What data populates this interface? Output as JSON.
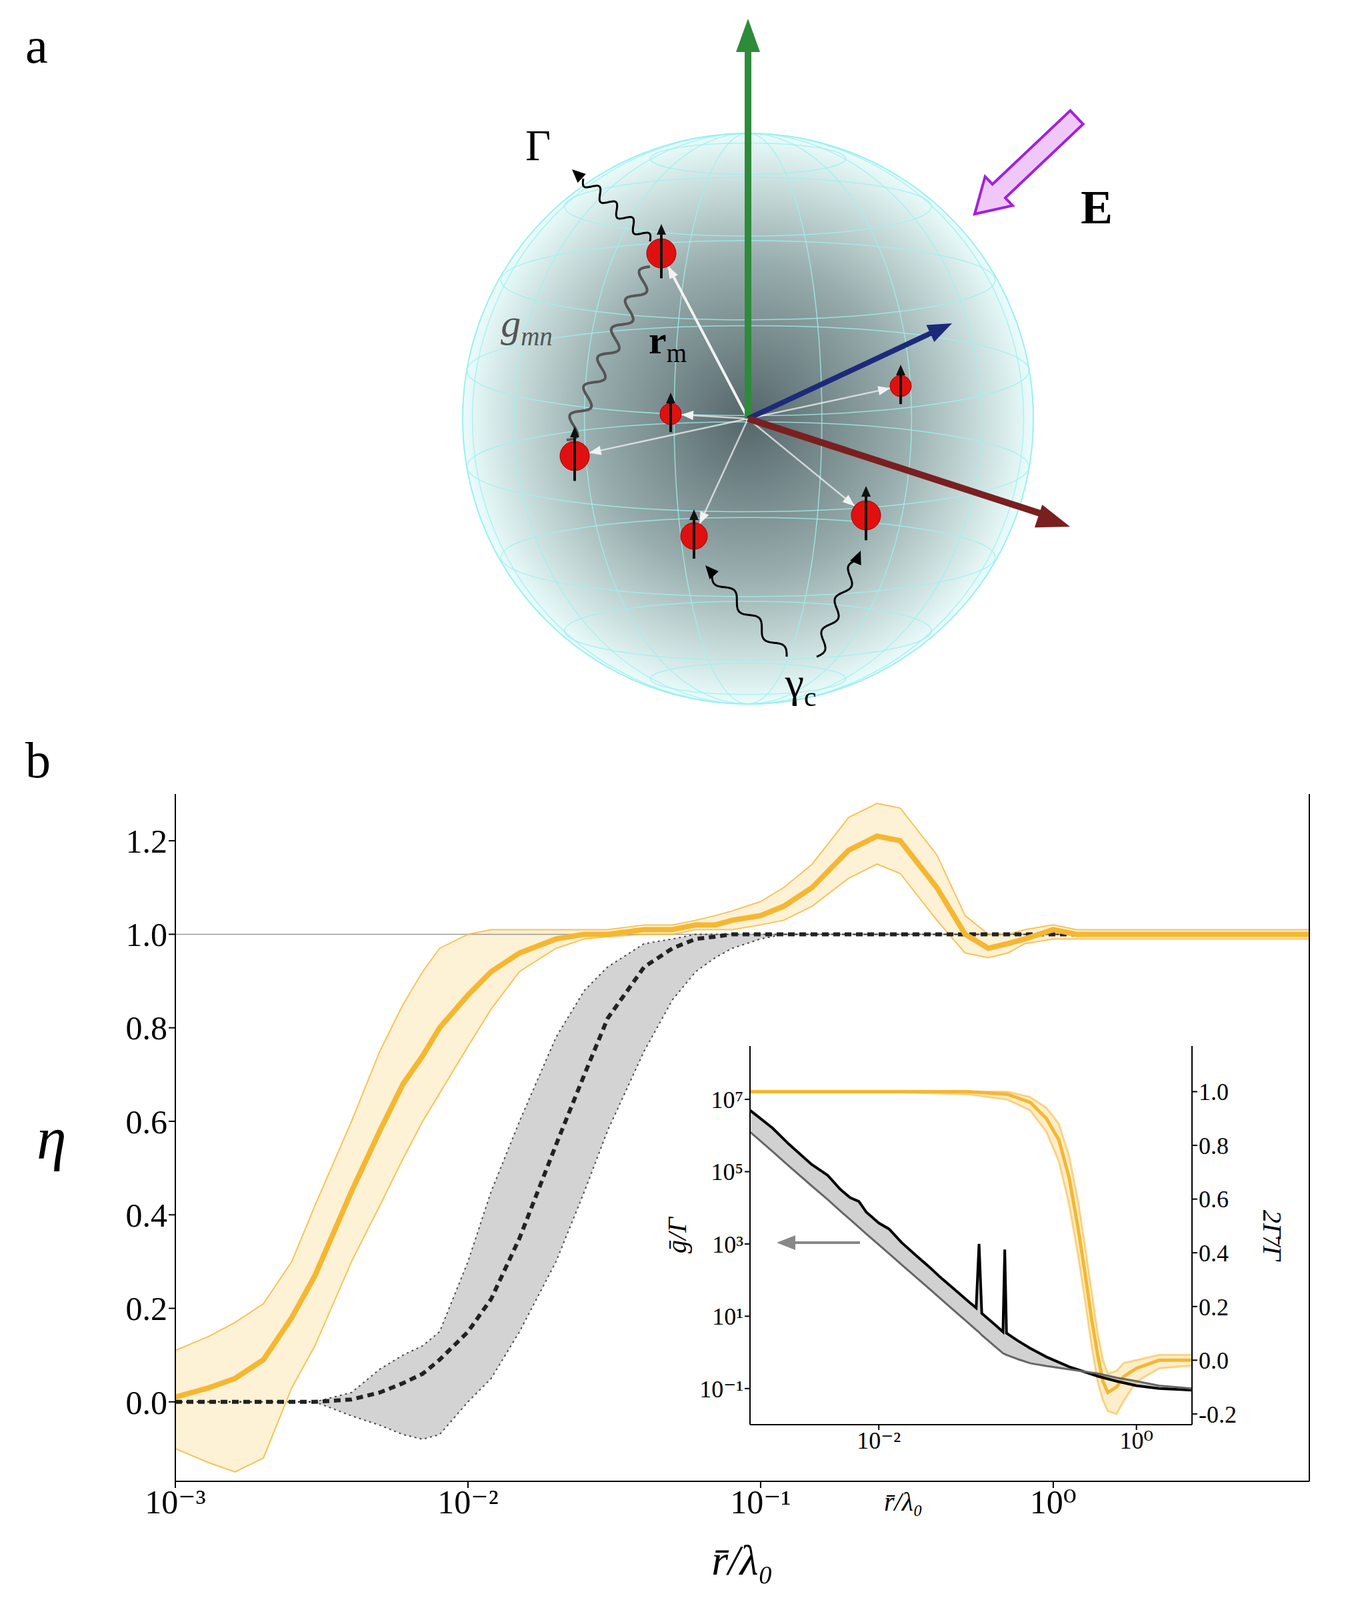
{
  "diagram": {
    "panel_label": "a",
    "labels": [
      {
        "text": "Γ"
      },
      {
        "text": "g",
        "subscript": "mn"
      },
      {
        "text": "r",
        "subscript": "m"
      },
      {
        "text": "E"
      },
      {
        "text": "γ",
        "subscript": "c"
      }
    ]
  },
  "chart_data": [
    {
      "type": "line",
      "panel_label": "b",
      "x_label": "r̄/λ₀",
      "y_label": "η",
      "log": "x",
      "xlim": [
        0.001,
        7.5
      ],
      "ylim": [
        -0.17,
        1.3
      ],
      "xticks": [
        {
          "value": 0.001,
          "label": "10⁻³"
        },
        {
          "value": 0.01,
          "label": "10⁻²"
        },
        {
          "value": 0.1,
          "label": "10⁻¹"
        },
        {
          "value": 1,
          "label": "10⁰"
        }
      ],
      "yticks": [
        {
          "value": 0,
          "label": "0.0"
        },
        0.2,
        0.4,
        0.6,
        0.8,
        {
          "value": 1,
          "label": "1.0"
        },
        1.2
      ],
      "reference_line": 1,
      "x": [
        0.001,
        0.0013,
        0.0016,
        0.002,
        0.0025,
        0.003,
        0.004,
        0.005,
        0.006,
        0.007,
        0.008,
        0.01,
        0.012,
        0.015,
        0.02,
        0.025,
        0.03,
        0.04,
        0.05,
        0.06,
        0.07,
        0.08,
        0.1,
        0.12,
        0.15,
        0.2,
        0.25,
        0.3,
        0.4,
        0.5,
        0.6,
        0.7,
        0.8,
        1,
        1.2,
        1.5,
        2,
        3,
        5,
        7.5
      ],
      "series": [
        {
          "color": "#f5b731",
          "line_style": "solid",
          "values": [
            0.01,
            0.03,
            0.05,
            0.09,
            0.18,
            0.27,
            0.45,
            0.58,
            0.68,
            0.74,
            0.8,
            0.87,
            0.92,
            0.96,
            0.99,
            1.0,
            1.0,
            1.01,
            1.01,
            1.02,
            1.02,
            1.03,
            1.04,
            1.06,
            1.1,
            1.18,
            1.21,
            1.2,
            1.1,
            1.0,
            0.97,
            0.98,
            0.99,
            1.01,
            1.0,
            1.0,
            1.0,
            1.0,
            1.0,
            1.0
          ],
          "lower": [
            -0.1,
            -0.13,
            -0.15,
            -0.12,
            0.03,
            0.12,
            0.3,
            0.42,
            0.52,
            0.6,
            0.66,
            0.76,
            0.84,
            0.92,
            0.97,
            0.99,
            0.995,
            1.0,
            1.0,
            1.01,
            1.01,
            1.01,
            1.02,
            1.03,
            1.06,
            1.12,
            1.15,
            1.13,
            1.03,
            0.96,
            0.95,
            0.96,
            0.98,
            0.99,
            0.99,
            0.99,
            0.99,
            0.99,
            0.99,
            0.99
          ],
          "upper": [
            0.11,
            0.14,
            0.17,
            0.21,
            0.3,
            0.42,
            0.6,
            0.75,
            0.85,
            0.92,
            0.97,
            1.0,
            1.01,
            1.01,
            1.01,
            1.01,
            1.01,
            1.02,
            1.02,
            1.03,
            1.04,
            1.05,
            1.07,
            1.1,
            1.15,
            1.25,
            1.28,
            1.27,
            1.17,
            1.04,
            1.0,
            1.0,
            1.01,
            1.02,
            1.01,
            1.01,
            1.01,
            1.01,
            1.01,
            1.01
          ]
        },
        {
          "color": "#222222",
          "line_style": "dashed",
          "values": [
            0,
            0,
            0,
            0,
            0,
            0,
            0.005,
            0.02,
            0.04,
            0.06,
            0.09,
            0.15,
            0.22,
            0.35,
            0.55,
            0.7,
            0.82,
            0.93,
            0.97,
            0.99,
            0.995,
            1.0,
            1.0,
            1.0,
            1.0,
            1.0,
            1.0,
            1.0,
            1.0,
            1.0,
            1.0,
            1.0,
            1.0,
            1.0,
            1.0,
            1.0,
            1.0,
            1.0,
            1.0,
            1.0
          ],
          "lower": [
            0,
            0,
            0,
            0,
            0,
            0,
            -0.03,
            -0.05,
            -0.07,
            -0.08,
            -0.07,
            0.0,
            0.05,
            0.15,
            0.3,
            0.45,
            0.58,
            0.75,
            0.86,
            0.92,
            0.95,
            0.97,
            0.99,
            1.0,
            1.0,
            1.0,
            1.0,
            1.0,
            1.0,
            1.0,
            1.0,
            1.0,
            1.0,
            1.0,
            1.0,
            1.0,
            1.0,
            1.0,
            1.0,
            1.0
          ],
          "upper": [
            0,
            0,
            0,
            0,
            0,
            0,
            0.02,
            0.07,
            0.1,
            0.12,
            0.15,
            0.3,
            0.45,
            0.6,
            0.78,
            0.88,
            0.93,
            0.98,
            0.99,
            1.0,
            1.0,
            1.0,
            1.0,
            1.0,
            1.0,
            1.0,
            1.0,
            1.0,
            1.0,
            1.0,
            1.0,
            1.0,
            1.0,
            1.0,
            1.0,
            1.0,
            1.0,
            1.0,
            1.0,
            1.0
          ]
        }
      ]
    },
    {
      "type": "line",
      "x_label": "r̄/λ₀",
      "y_label": "ḡ/Γ",
      "y2_label": "2Γ̄/Γ",
      "log": true,
      "xlim": [
        0.001,
        2.7
      ],
      "ylim": [
        0.01,
        300000000
      ],
      "y2lim": [
        -0.24,
        1.17
      ],
      "xticks": [
        {
          "value": 0.01,
          "label": "10⁻²"
        },
        {
          "value": 1,
          "label": "10⁰"
        }
      ],
      "yticks": [
        {
          "value": 10000000,
          "label": "10⁷"
        },
        {
          "value": 100000,
          "label": "10⁵"
        },
        {
          "value": 1000,
          "label": "10³"
        },
        {
          "value": 10,
          "label": "10¹"
        },
        {
          "value": 0.1,
          "label": "10⁻¹"
        }
      ],
      "y2ticks": [
        -0.2,
        {
          "value": 0,
          "label": "0.0"
        },
        0.2,
        0.4,
        0.6,
        0.8,
        {
          "value": 1,
          "label": "1.0"
        }
      ],
      "x": [
        0.001,
        0.0015,
        0.002,
        0.003,
        0.004,
        0.005,
        0.006,
        0.007,
        0.008,
        0.01,
        0.012,
        0.015,
        0.02,
        0.025,
        0.03,
        0.04,
        0.05,
        0.057,
        0.06,
        0.063,
        0.08,
        0.092,
        0.095,
        0.098,
        0.12,
        0.15,
        0.2,
        0.3,
        0.5,
        0.7,
        1,
        1.5,
        2.7
      ],
      "series": [
        {
          "color": "#000000",
          "line_style": "solid",
          "values": [
            5000000,
            1600000,
            580000,
            160000,
            80000,
            33000,
            19000,
            15000,
            7600,
            3800,
            2600,
            1100,
            440,
            220,
            120,
            50,
            25,
            17,
            1000,
            12,
            5.8,
            3.7,
            700,
            3.4,
            2.1,
            1.3,
            0.75,
            0.4,
            0.22,
            0.16,
            0.12,
            0.1,
            0.09
          ]
        },
        {
          "color": "#666666",
          "line_style": "solid",
          "values": [
            1260000,
            360000,
            145000,
            41000,
            17000,
            8300,
            4700,
            2900,
            1900,
            950,
            540,
            270,
            110,
            55,
            31,
            12.6,
            6.3,
            4.2,
            3.6,
            3.0,
            1.45,
            0.95,
            0.9,
            0.85,
            0.65,
            0.5,
            0.42,
            0.34,
            0.26,
            0.2,
            0.16,
            0.12,
            0.1
          ]
        },
        {
          "color": "#f5b731",
          "line_style": "solid",
          "axis": "y2",
          "x": [
            0.001,
            0.01,
            0.05,
            0.1,
            0.15,
            0.2,
            0.25,
            0.3,
            0.35,
            0.4,
            0.45,
            0.5,
            0.55,
            0.6,
            0.7,
            0.8,
            1,
            1.5,
            2.7
          ],
          "values": [
            1.0,
            1.0,
            1.0,
            0.99,
            0.96,
            0.9,
            0.82,
            0.68,
            0.5,
            0.32,
            0.15,
            0.02,
            -0.08,
            -0.12,
            -0.1,
            -0.06,
            -0.03,
            0.0,
            0.0
          ],
          "lower": [
            1.0,
            1.0,
            0.99,
            0.97,
            0.93,
            0.85,
            0.74,
            0.58,
            0.4,
            0.22,
            0.05,
            -0.08,
            -0.15,
            -0.19,
            -0.2,
            -0.15,
            -0.08,
            -0.03,
            -0.02
          ],
          "upper": [
            1.0,
            1.0,
            1.0,
            1.0,
            0.98,
            0.94,
            0.88,
            0.76,
            0.6,
            0.42,
            0.25,
            0.1,
            0.0,
            -0.05,
            -0.04,
            -0.01,
            0.0,
            0.02,
            0.02
          ]
        }
      ]
    }
  ]
}
